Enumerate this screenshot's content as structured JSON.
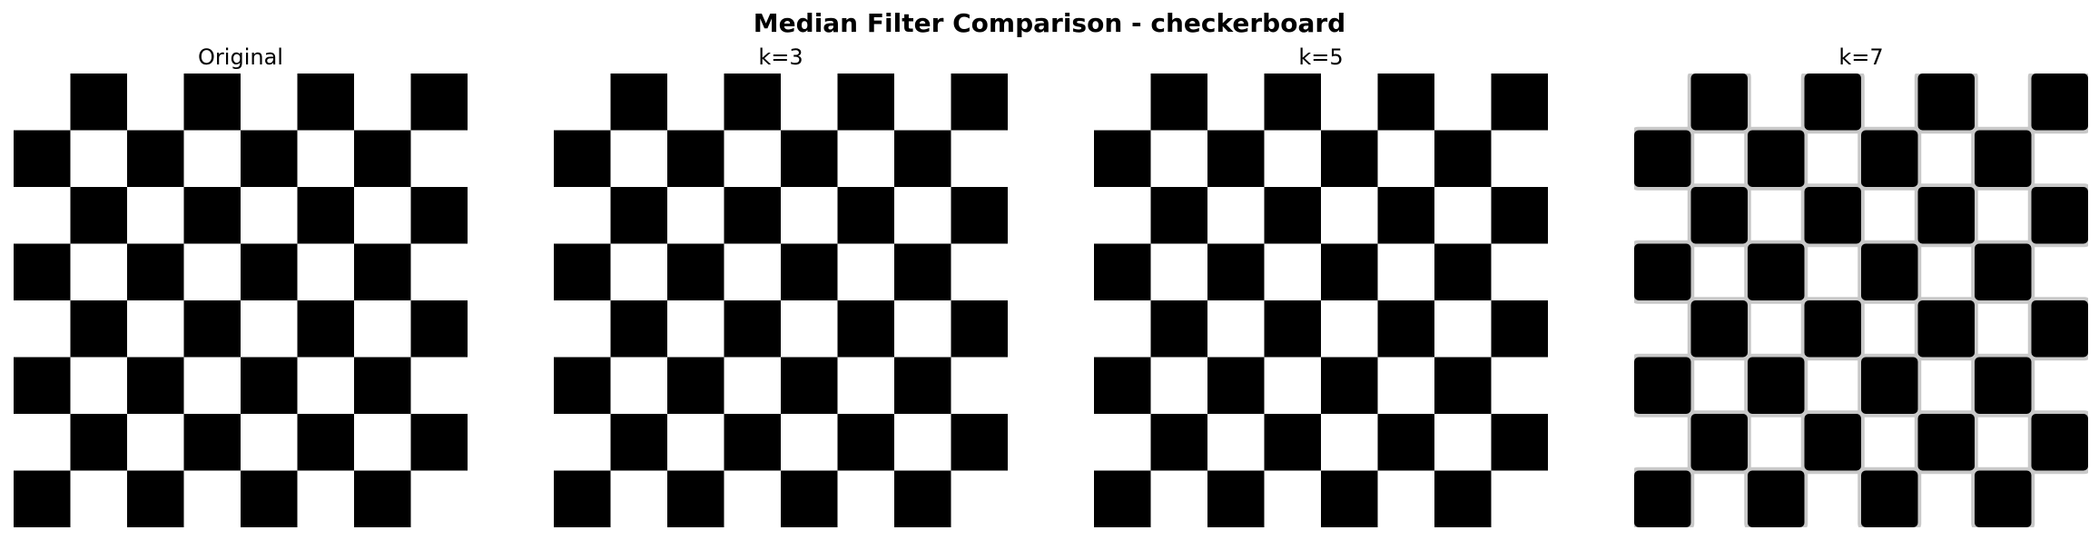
{
  "figure": {
    "title": "Median Filter Comparison - checkerboard"
  },
  "panels": [
    {
      "title": "Original",
      "blur": 0.0,
      "halo": false
    },
    {
      "title": "k=3",
      "blur": 0.0,
      "halo": false
    },
    {
      "title": "k=5",
      "blur": 0.0,
      "halo": false
    },
    {
      "title": "k=7",
      "blur": 0.0,
      "halo": true
    }
  ],
  "checkerboard": {
    "rows": 8,
    "cols": 8,
    "dark_color": "#000000",
    "light_color": "#ffffff",
    "halo_color": "#c9c9c9"
  }
}
